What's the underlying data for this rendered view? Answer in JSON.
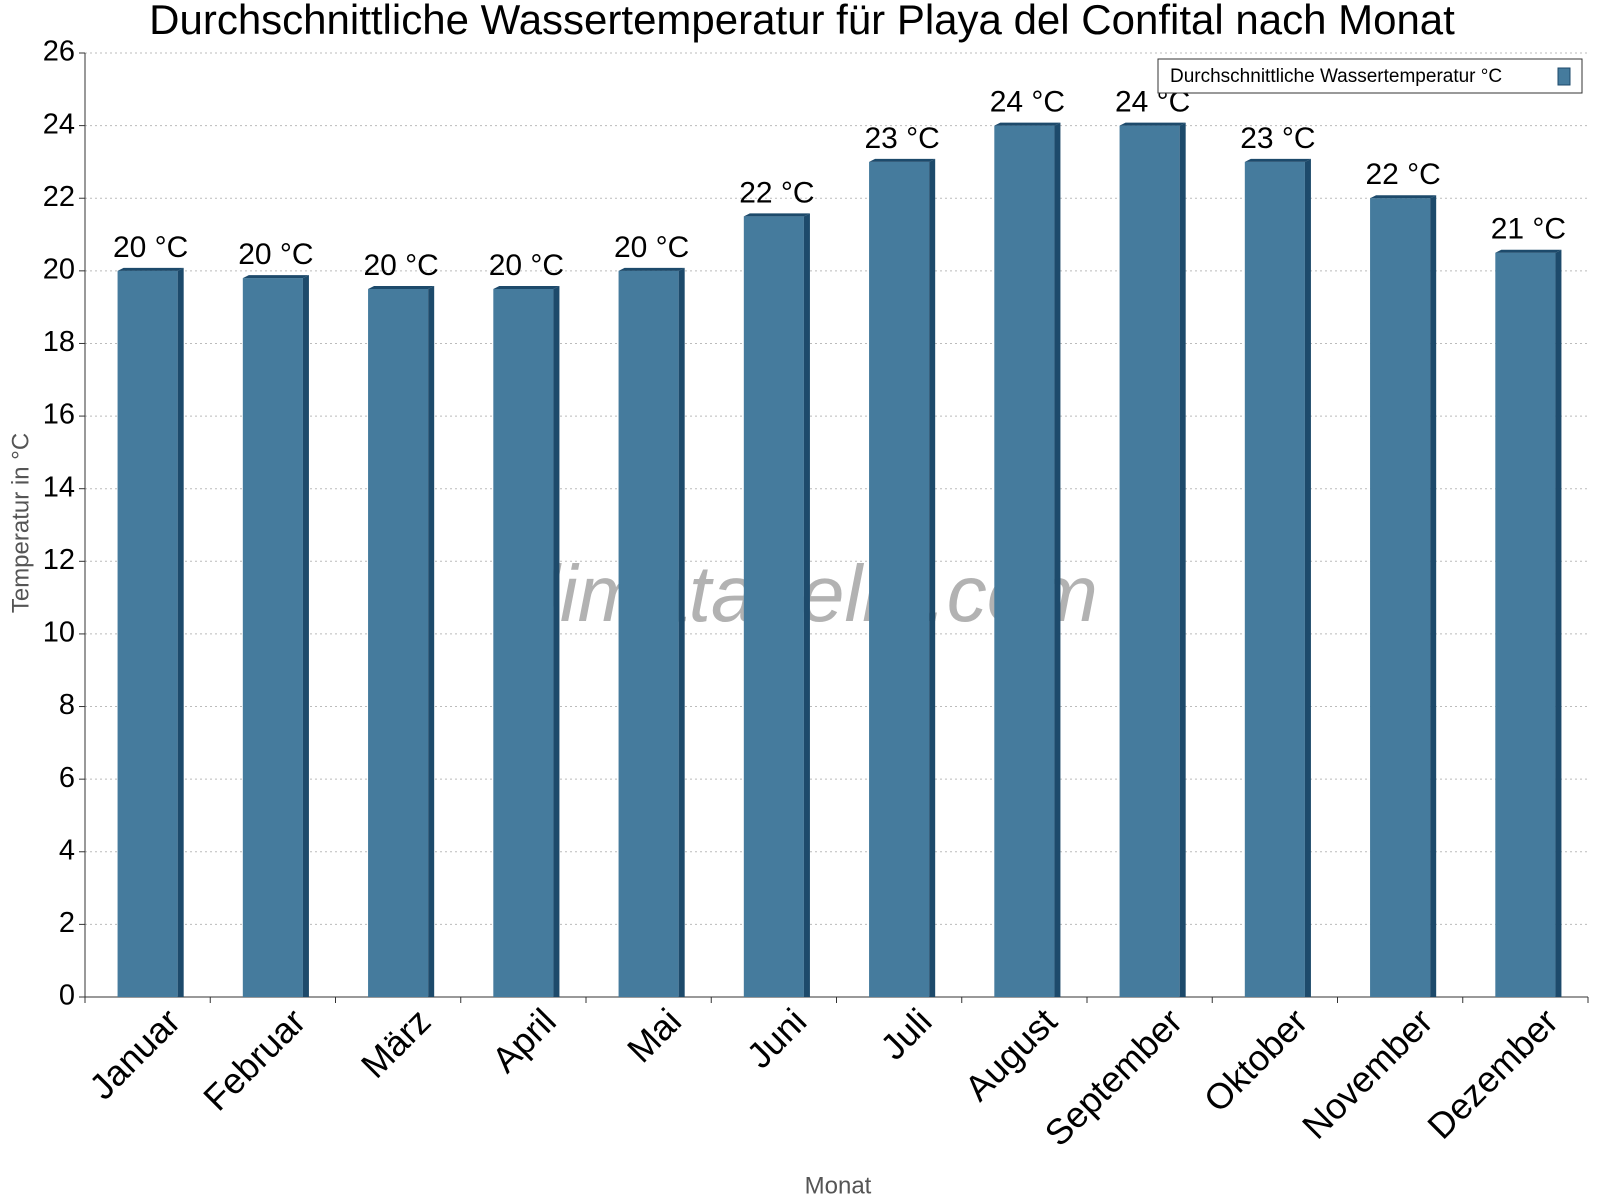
{
  "chart_data": {
    "type": "bar",
    "title": "Durchschnittliche Wassertemperatur für Playa del Confital nach Monat",
    "x_label": "Monat",
    "y_label": "Temperatur in °C",
    "watermark": "klimatabelle.com",
    "categories": [
      "Januar",
      "Februar",
      "März",
      "April",
      "Mai",
      "Juni",
      "Juli",
      "August",
      "September",
      "Oktober",
      "November",
      "Dezember"
    ],
    "series": [
      {
        "name": "Durchschnittliche Wassertemperatur °C",
        "color": "#457b9d",
        "values": [
          20,
          19.8,
          19.5,
          19.5,
          20,
          21.5,
          23,
          24,
          24,
          23,
          22,
          20.5
        ],
        "value_labels": [
          "20 °C",
          "20 °C",
          "20 °C",
          "20 °C",
          "20 °C",
          "22 °C",
          "23 °C",
          "24 °C",
          "24 °C",
          "23 °C",
          "22 °C",
          "21 °C"
        ]
      }
    ],
    "ylim": [
      0,
      26
    ],
    "yticks": [
      0,
      2,
      4,
      6,
      8,
      10,
      12,
      14,
      16,
      18,
      20,
      22,
      24,
      26
    ],
    "grid": true,
    "legend": "top-right"
  }
}
